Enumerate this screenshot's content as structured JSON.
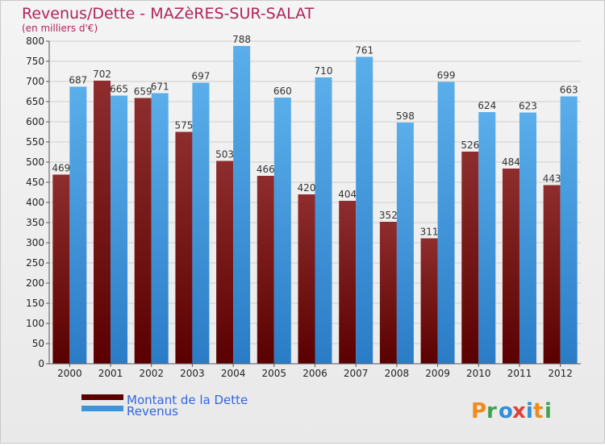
{
  "chart_data": {
    "type": "bar",
    "title": "Revenus/Dette - MAZèRES-SUR-SALAT",
    "subtitle": "(en milliers d'€)",
    "categories": [
      "2000",
      "2001",
      "2002",
      "2003",
      "2004",
      "2005",
      "2006",
      "2007",
      "2008",
      "2009",
      "2010",
      "2011",
      "2012"
    ],
    "series": [
      {
        "name": "Montant de la Dette",
        "color": "#7a1c1c",
        "values": [
          469,
          702,
          659,
          575,
          503,
          466,
          420,
          404,
          352,
          311,
          526,
          484,
          443
        ]
      },
      {
        "name": "Revenus",
        "color": "#3b95de",
        "values": [
          687,
          665,
          671,
          697,
          788,
          660,
          710,
          761,
          598,
          699,
          624,
          623,
          663
        ]
      }
    ],
    "ylim": [
      0,
      800
    ],
    "ytick_step": 50,
    "grid": true,
    "legend_position": "bottom-left"
  },
  "watermark": "Proxiti"
}
